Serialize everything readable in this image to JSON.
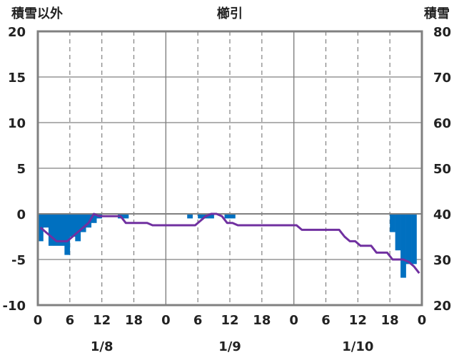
{
  "chart_data": {
    "type": "bar",
    "title": "櫛引",
    "left_axis_label": "積雪以外",
    "right_axis_label": "積雪",
    "left_ylim": [
      -10,
      20
    ],
    "left_yticks": [
      "-10",
      "-5",
      "0",
      "5",
      "10",
      "15",
      "20"
    ],
    "right_ylim": [
      20,
      80
    ],
    "right_yticks": [
      "20",
      "30",
      "40",
      "50",
      "60",
      "70",
      "80"
    ],
    "x_hour_ticks": [
      "0",
      "6",
      "12",
      "18",
      "0",
      "6",
      "12",
      "18",
      "0",
      "6",
      "12",
      "18",
      "0"
    ],
    "date_labels": [
      "1/8",
      "1/9",
      "1/10"
    ],
    "x_hours_total": 72,
    "grid": true,
    "colors": {
      "bars": "#0070c0",
      "line": "#7030a0",
      "zero_line": "#808080",
      "grid": "#808080",
      "frame": "#808080"
    },
    "series": [
      {
        "kind": "bar",
        "axis": "left",
        "hours": [
          0,
          1,
          2,
          3,
          4,
          5,
          6,
          7,
          8,
          9,
          10,
          11,
          15,
          16,
          28,
          30,
          31,
          32,
          35,
          36,
          66,
          67,
          68,
          69,
          70
        ],
        "values": [
          -3,
          -1.5,
          -3.5,
          -3.5,
          -3.5,
          -4.5,
          -2.5,
          -3,
          -2,
          -1.5,
          -1,
          -0.5,
          -0.5,
          -0.5,
          -0.5,
          -0.5,
          -0.5,
          -0.5,
          -0.5,
          -0.5,
          -2,
          -4,
          -7,
          -5.5,
          -5.5
        ]
      },
      {
        "kind": "line",
        "axis": "right",
        "hours": [
          0,
          1,
          2,
          3,
          4,
          5,
          6,
          7,
          8,
          9,
          10,
          11,
          12,
          13,
          14,
          15,
          16,
          17,
          18,
          19,
          20,
          21,
          22,
          23,
          24,
          25,
          26,
          27,
          28,
          29,
          30,
          31,
          32,
          33,
          34,
          35,
          36,
          37,
          38,
          39,
          40,
          41,
          42,
          43,
          44,
          45,
          46,
          47,
          48,
          49,
          50,
          51,
          52,
          53,
          54,
          55,
          56,
          57,
          58,
          59,
          60,
          61,
          62,
          63,
          64,
          65,
          66,
          67,
          68,
          69,
          70,
          71
        ],
        "values": [
          37,
          36,
          35,
          34,
          34,
          34,
          35,
          36,
          37,
          38,
          40,
          39.5,
          39.5,
          39.5,
          39.5,
          39.5,
          38,
          38,
          38,
          38,
          38,
          37.5,
          37.5,
          37.5,
          37.5,
          37.5,
          37.5,
          37.5,
          37.5,
          37.5,
          38.5,
          39.5,
          40,
          40,
          39.5,
          38,
          38,
          37.5,
          37.5,
          37.5,
          37.5,
          37.5,
          37.5,
          37.5,
          37.5,
          37.5,
          37.5,
          37.5,
          37.5,
          36.5,
          36.5,
          36.5,
          36.5,
          36.5,
          36.5,
          36.5,
          36.5,
          35,
          34,
          34,
          33,
          33,
          33,
          31.5,
          31.5,
          31.5,
          30,
          30,
          30,
          29.5,
          28.5,
          27
        ]
      }
    ]
  }
}
